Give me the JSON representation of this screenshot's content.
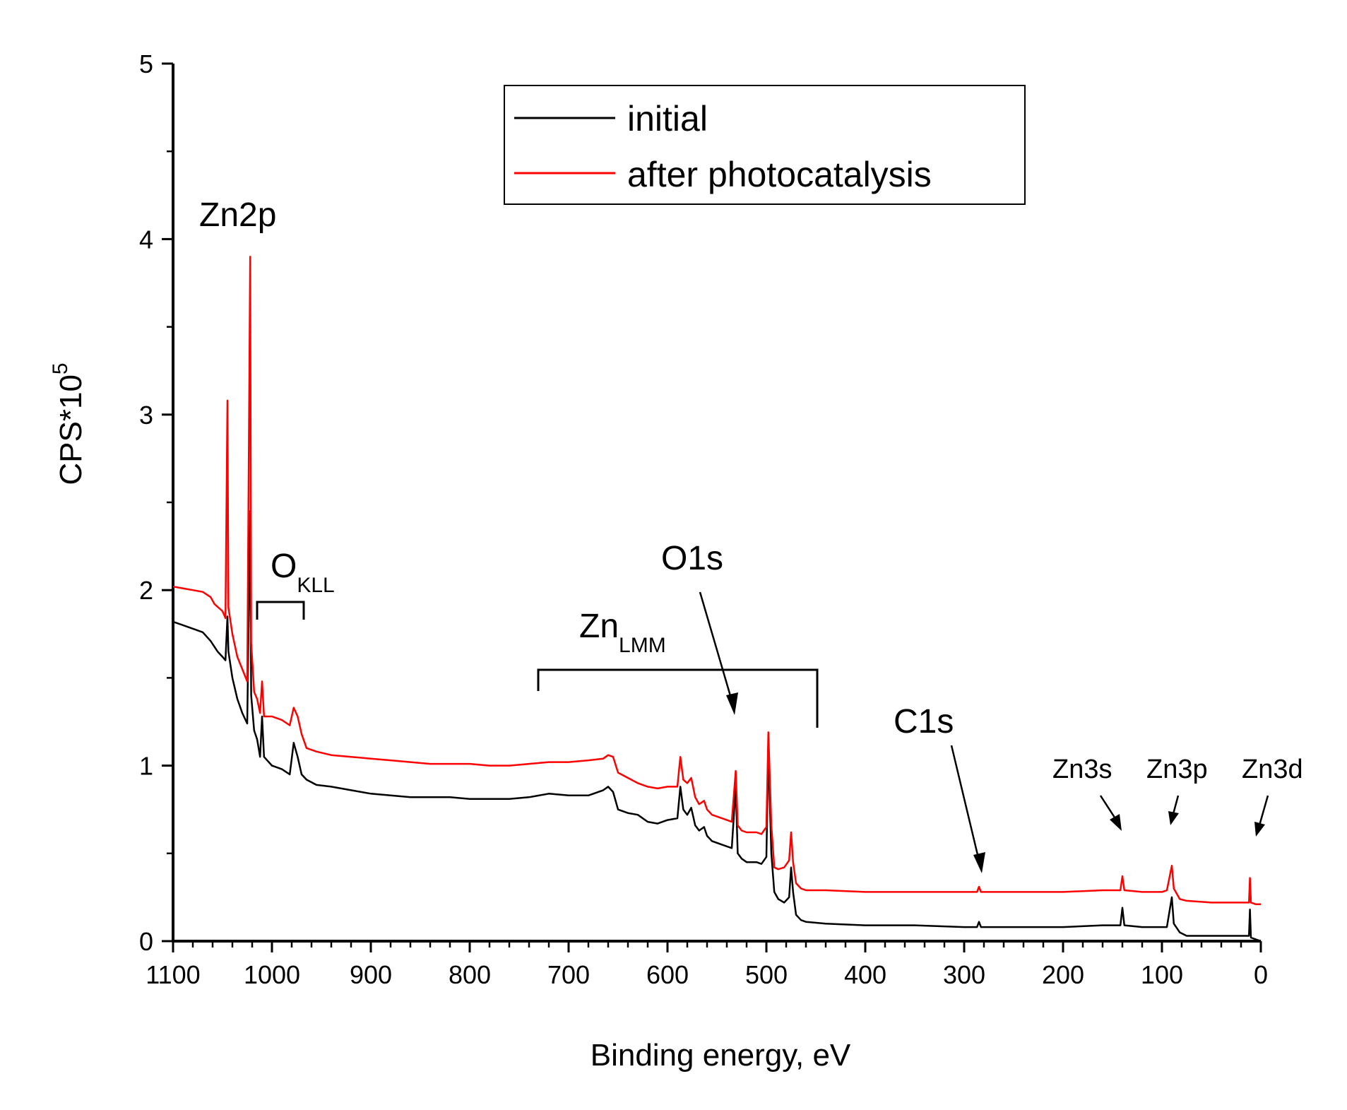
{
  "chart_data": {
    "type": "line",
    "xlabel": "Binding energy, eV",
    "ylabel": "CPS*10",
    "ylabel_superscript": "5",
    "xlim": [
      1100,
      0
    ],
    "ylim": [
      0,
      5
    ],
    "x_reversed": true,
    "x_ticks": [
      1100,
      1000,
      900,
      800,
      700,
      600,
      500,
      400,
      300,
      200,
      100,
      0
    ],
    "x_tick_labels": [
      "1100",
      "1000",
      "900",
      "800",
      "700",
      "600",
      "500",
      "400",
      "300",
      "200",
      "100",
      "0"
    ],
    "y_ticks": [
      0,
      1,
      2,
      3,
      4,
      5
    ],
    "y_tick_labels": [
      "0",
      "1",
      "2",
      "3",
      "4",
      "5"
    ],
    "grid": false,
    "legend_position": "top-center",
    "series": [
      {
        "name": "initial",
        "color": "#000000",
        "points": [
          [
            1100,
            1.82
          ],
          [
            1080,
            1.78
          ],
          [
            1070,
            1.76
          ],
          [
            1062,
            1.71
          ],
          [
            1055,
            1.65
          ],
          [
            1050,
            1.62
          ],
          [
            1047,
            1.6
          ],
          [
            1045,
            1.85
          ],
          [
            1044,
            1.65
          ],
          [
            1040,
            1.5
          ],
          [
            1035,
            1.38
          ],
          [
            1030,
            1.3
          ],
          [
            1025,
            1.24
          ],
          [
            1022,
            2.45
          ],
          [
            1021,
            1.4
          ],
          [
            1018,
            1.2
          ],
          [
            1015,
            1.15
          ],
          [
            1012,
            1.05
          ],
          [
            1010,
            1.28
          ],
          [
            1008,
            1.05
          ],
          [
            1000,
            1.0
          ],
          [
            990,
            0.98
          ],
          [
            982,
            0.95
          ],
          [
            978,
            1.13
          ],
          [
            974,
            1.05
          ],
          [
            970,
            0.95
          ],
          [
            965,
            0.92
          ],
          [
            955,
            0.89
          ],
          [
            940,
            0.88
          ],
          [
            920,
            0.86
          ],
          [
            900,
            0.84
          ],
          [
            880,
            0.83
          ],
          [
            860,
            0.82
          ],
          [
            840,
            0.82
          ],
          [
            820,
            0.82
          ],
          [
            800,
            0.81
          ],
          [
            780,
            0.81
          ],
          [
            760,
            0.81
          ],
          [
            740,
            0.82
          ],
          [
            720,
            0.84
          ],
          [
            700,
            0.83
          ],
          [
            680,
            0.83
          ],
          [
            665,
            0.86
          ],
          [
            660,
            0.88
          ],
          [
            655,
            0.85
          ],
          [
            650,
            0.75
          ],
          [
            640,
            0.73
          ],
          [
            630,
            0.72
          ],
          [
            620,
            0.68
          ],
          [
            610,
            0.67
          ],
          [
            600,
            0.69
          ],
          [
            590,
            0.7
          ],
          [
            587,
            0.88
          ],
          [
            584,
            0.75
          ],
          [
            580,
            0.72
          ],
          [
            576,
            0.76
          ],
          [
            572,
            0.66
          ],
          [
            568,
            0.63
          ],
          [
            563,
            0.65
          ],
          [
            560,
            0.6
          ],
          [
            555,
            0.57
          ],
          [
            545,
            0.55
          ],
          [
            535,
            0.53
          ],
          [
            531,
            0.88
          ],
          [
            529,
            0.5
          ],
          [
            525,
            0.47
          ],
          [
            520,
            0.45
          ],
          [
            510,
            0.45
          ],
          [
            505,
            0.44
          ],
          [
            500,
            0.48
          ],
          [
            498,
            1.09
          ],
          [
            495,
            0.5
          ],
          [
            492,
            0.28
          ],
          [
            488,
            0.24
          ],
          [
            482,
            0.22
          ],
          [
            477,
            0.25
          ],
          [
            475,
            0.42
          ],
          [
            473,
            0.28
          ],
          [
            470,
            0.15
          ],
          [
            465,
            0.12
          ],
          [
            460,
            0.11
          ],
          [
            440,
            0.1
          ],
          [
            400,
            0.09
          ],
          [
            350,
            0.09
          ],
          [
            300,
            0.08
          ],
          [
            287,
            0.08
          ],
          [
            285,
            0.11
          ],
          [
            283,
            0.08
          ],
          [
            250,
            0.08
          ],
          [
            200,
            0.08
          ],
          [
            160,
            0.09
          ],
          [
            142,
            0.09
          ],
          [
            140,
            0.19
          ],
          [
            138,
            0.09
          ],
          [
            120,
            0.08
          ],
          [
            100,
            0.08
          ],
          [
            95,
            0.08
          ],
          [
            90,
            0.25
          ],
          [
            88,
            0.1
          ],
          [
            82,
            0.05
          ],
          [
            75,
            0.03
          ],
          [
            50,
            0.03
          ],
          [
            20,
            0.03
          ],
          [
            12,
            0.03
          ],
          [
            11,
            0.18
          ],
          [
            10,
            0.02
          ],
          [
            5,
            0.01
          ],
          [
            0,
            0.0
          ]
        ]
      },
      {
        "name": "after photocatalysis",
        "color": "#ff0000",
        "points": [
          [
            1100,
            2.02
          ],
          [
            1080,
            2.0
          ],
          [
            1070,
            1.99
          ],
          [
            1062,
            1.96
          ],
          [
            1058,
            1.92
          ],
          [
            1050,
            1.88
          ],
          [
            1047,
            1.84
          ],
          [
            1045,
            3.08
          ],
          [
            1044,
            1.9
          ],
          [
            1040,
            1.75
          ],
          [
            1035,
            1.62
          ],
          [
            1030,
            1.55
          ],
          [
            1025,
            1.48
          ],
          [
            1022,
            3.9
          ],
          [
            1021,
            1.7
          ],
          [
            1018,
            1.42
          ],
          [
            1015,
            1.38
          ],
          [
            1012,
            1.3
          ],
          [
            1010,
            1.48
          ],
          [
            1008,
            1.28
          ],
          [
            1000,
            1.28
          ],
          [
            990,
            1.26
          ],
          [
            982,
            1.23
          ],
          [
            978,
            1.33
          ],
          [
            974,
            1.28
          ],
          [
            970,
            1.18
          ],
          [
            965,
            1.1
          ],
          [
            955,
            1.08
          ],
          [
            940,
            1.06
          ],
          [
            920,
            1.05
          ],
          [
            900,
            1.04
          ],
          [
            880,
            1.03
          ],
          [
            860,
            1.02
          ],
          [
            840,
            1.01
          ],
          [
            820,
            1.01
          ],
          [
            800,
            1.01
          ],
          [
            780,
            1.0
          ],
          [
            760,
            1.0
          ],
          [
            740,
            1.01
          ],
          [
            720,
            1.02
          ],
          [
            700,
            1.02
          ],
          [
            680,
            1.03
          ],
          [
            665,
            1.04
          ],
          [
            660,
            1.06
          ],
          [
            655,
            1.05
          ],
          [
            650,
            0.96
          ],
          [
            640,
            0.93
          ],
          [
            630,
            0.9
          ],
          [
            620,
            0.88
          ],
          [
            610,
            0.87
          ],
          [
            600,
            0.88
          ],
          [
            590,
            0.88
          ],
          [
            587,
            1.05
          ],
          [
            584,
            0.92
          ],
          [
            580,
            0.9
          ],
          [
            576,
            0.93
          ],
          [
            572,
            0.82
          ],
          [
            568,
            0.78
          ],
          [
            563,
            0.8
          ],
          [
            560,
            0.75
          ],
          [
            555,
            0.72
          ],
          [
            545,
            0.7
          ],
          [
            535,
            0.68
          ],
          [
            531,
            0.97
          ],
          [
            529,
            0.66
          ],
          [
            525,
            0.63
          ],
          [
            520,
            0.62
          ],
          [
            510,
            0.62
          ],
          [
            505,
            0.61
          ],
          [
            500,
            0.65
          ],
          [
            498,
            1.19
          ],
          [
            495,
            0.66
          ],
          [
            492,
            0.42
          ],
          [
            488,
            0.41
          ],
          [
            482,
            0.42
          ],
          [
            477,
            0.46
          ],
          [
            475,
            0.62
          ],
          [
            473,
            0.45
          ],
          [
            470,
            0.33
          ],
          [
            465,
            0.3
          ],
          [
            460,
            0.29
          ],
          [
            440,
            0.29
          ],
          [
            400,
            0.28
          ],
          [
            350,
            0.28
          ],
          [
            300,
            0.28
          ],
          [
            287,
            0.28
          ],
          [
            285,
            0.31
          ],
          [
            283,
            0.28
          ],
          [
            250,
            0.28
          ],
          [
            200,
            0.28
          ],
          [
            160,
            0.29
          ],
          [
            142,
            0.29
          ],
          [
            140,
            0.37
          ],
          [
            138,
            0.29
          ],
          [
            120,
            0.28
          ],
          [
            100,
            0.28
          ],
          [
            95,
            0.29
          ],
          [
            90,
            0.43
          ],
          [
            88,
            0.3
          ],
          [
            82,
            0.24
          ],
          [
            75,
            0.23
          ],
          [
            50,
            0.22
          ],
          [
            20,
            0.22
          ],
          [
            12,
            0.22
          ],
          [
            11,
            0.36
          ],
          [
            10,
            0.22
          ],
          [
            5,
            0.21
          ],
          [
            0,
            0.21
          ]
        ]
      }
    ],
    "annotations": {
      "zn2p": "Zn2p",
      "okll_main": "O",
      "okll_sub": "KLL",
      "o1s": "O1s",
      "znlmm_main": "Zn",
      "znlmm_sub": "LMM",
      "c1s": "C1s",
      "zn3s": "Zn3s",
      "zn3p": "Zn3p",
      "zn3d": "Zn3d"
    }
  }
}
